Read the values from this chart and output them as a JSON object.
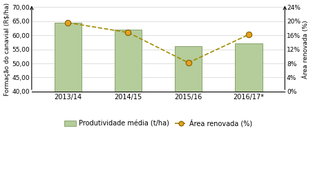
{
  "categories": [
    "2013/14",
    "2014/15",
    "2015/16",
    "2016/17*"
  ],
  "bar_values": [
    64.5,
    62.0,
    56.2,
    57.2
  ],
  "line_values": [
    0.196,
    0.168,
    0.082,
    0.162
  ],
  "bar_color": "#b5cc9b",
  "bar_edgecolor": "#7a9a60",
  "line_color": "#a08c00",
  "marker_facecolor": "#e8a020",
  "marker_edgecolor": "#7a6000",
  "ylabel_left": "Formação do canavial (R$/ha)",
  "ylabel_right": "Área renovada (%)",
  "ylim_left": [
    40.0,
    70.0
  ],
  "ylim_right": [
    0.0,
    0.24
  ],
  "yticks_left": [
    40.0,
    45.0,
    50.0,
    55.0,
    60.0,
    65.0,
    70.0
  ],
  "ytick_labels_left": [
    "40,00",
    "45,00",
    "50,00",
    "55,00",
    "60,00",
    "65,00",
    "70,00"
  ],
  "yticks_right": [
    0.0,
    0.04,
    0.08,
    0.12,
    0.16,
    0.2,
    0.24
  ],
  "ytick_labels_right": [
    "0%",
    "4%",
    "8%",
    "12%",
    "16%",
    "20%",
    "24%"
  ],
  "legend_bar_label": "Produtividade média (t/ha)",
  "legend_line_label": "Área renovada (%)",
  "background_color": "#ffffff",
  "grid_color": "#d0d0d0"
}
